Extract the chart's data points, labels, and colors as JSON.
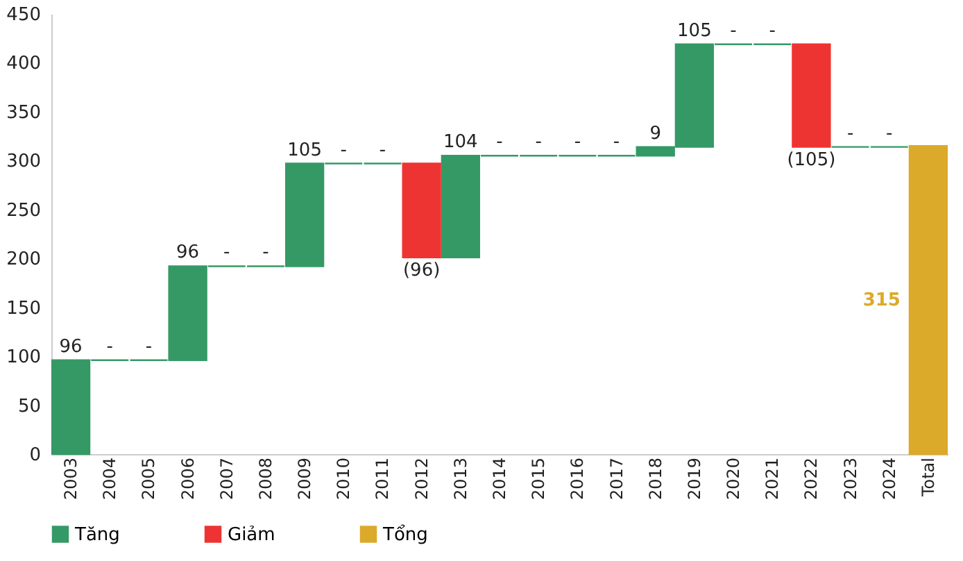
{
  "chart_data": {
    "type": "bar",
    "categories": [
      "2003",
      "2004",
      "2005",
      "2006",
      "2007",
      "2008",
      "2009",
      "2010",
      "2011",
      "2012",
      "2013",
      "2014",
      "2015",
      "2016",
      "2017",
      "2018",
      "2019",
      "2020",
      "2021",
      "2022",
      "2023",
      "2024",
      "Total"
    ],
    "series": [
      {
        "name": "Tăng",
        "color": "#359966",
        "values": [
          96,
          0,
          0,
          96,
          0,
          0,
          105,
          0,
          0,
          null,
          104,
          0,
          0,
          0,
          0,
          9,
          105,
          0,
          0,
          null,
          0,
          0,
          null
        ],
        "base": [
          0,
          96,
          96,
          96,
          192,
          192,
          192,
          297,
          297,
          null,
          201,
          305,
          305,
          305,
          305,
          305,
          314,
          419,
          419,
          null,
          314,
          314,
          null
        ]
      },
      {
        "name": "Giảm",
        "color": "#ee3432",
        "values": [
          null,
          null,
          null,
          null,
          null,
          null,
          null,
          null,
          null,
          -96,
          null,
          null,
          null,
          null,
          null,
          null,
          null,
          null,
          null,
          -105,
          null,
          null,
          null
        ],
        "base": [
          null,
          null,
          null,
          null,
          null,
          null,
          null,
          null,
          null,
          297,
          null,
          null,
          null,
          null,
          null,
          null,
          null,
          null,
          null,
          419,
          null,
          null,
          null
        ]
      },
      {
        "name": "Tổng",
        "color": "#dcaa2a",
        "values": [
          null,
          null,
          null,
          null,
          null,
          null,
          null,
          null,
          null,
          null,
          null,
          null,
          null,
          null,
          null,
          null,
          null,
          null,
          null,
          null,
          null,
          null,
          315
        ],
        "base": [
          null,
          null,
          null,
          null,
          null,
          null,
          null,
          null,
          null,
          null,
          null,
          null,
          null,
          null,
          null,
          null,
          null,
          null,
          null,
          null,
          null,
          null,
          0
        ]
      }
    ],
    "value_labels": [
      "96",
      "-",
      "-",
      "96",
      "-",
      "-",
      "105",
      "-",
      "-",
      "(96)",
      "104",
      "-",
      "-",
      "-",
      "-",
      "9",
      "105",
      "-",
      "-",
      "(105)",
      "-",
      "-",
      "315"
    ],
    "ylim": [
      0,
      450
    ],
    "yticks": [
      0,
      50,
      100,
      150,
      200,
      250,
      300,
      350,
      400,
      450
    ],
    "grid": false,
    "legend": "bottom"
  }
}
